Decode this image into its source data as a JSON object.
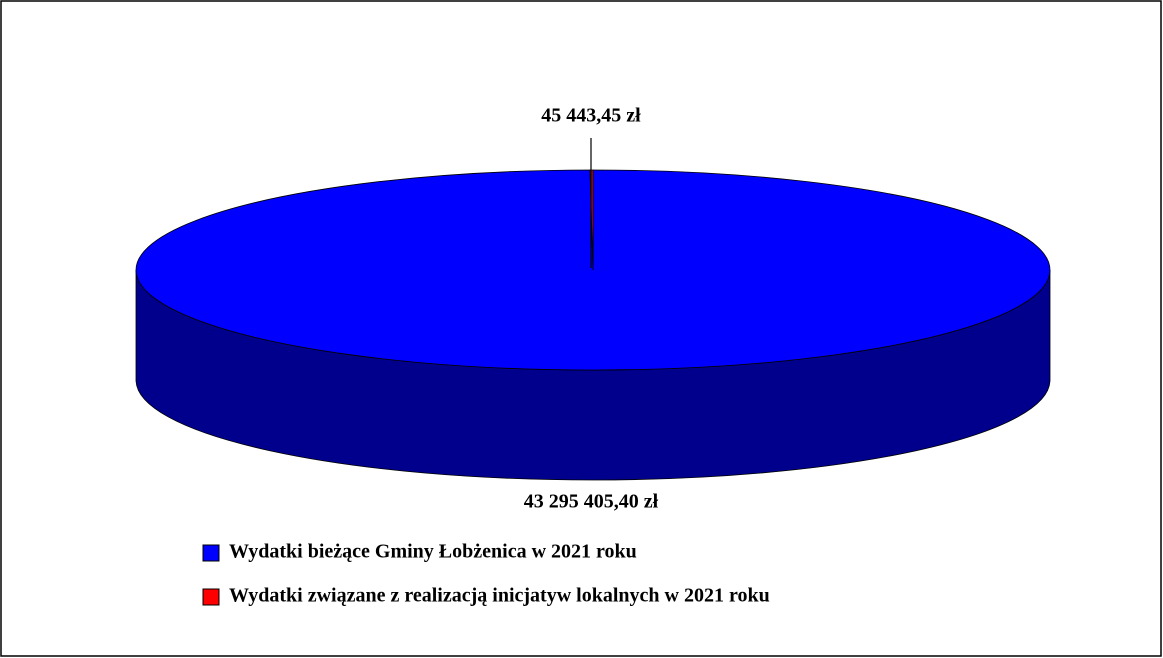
{
  "chart_data": {
    "type": "pie",
    "categories": [
      "Wydatki  bieżące Gminy Łobżenica w 2021 roku",
      "Wydatki związane z realizacją inicjatyw lokalnych w 2021 roku"
    ],
    "values": [
      43295405.4,
      45443.45
    ],
    "value_labels": [
      "43 295 405,40 zł",
      "45 443,45 zł"
    ],
    "colors": [
      "#0000ff",
      "#ff0000"
    ]
  }
}
